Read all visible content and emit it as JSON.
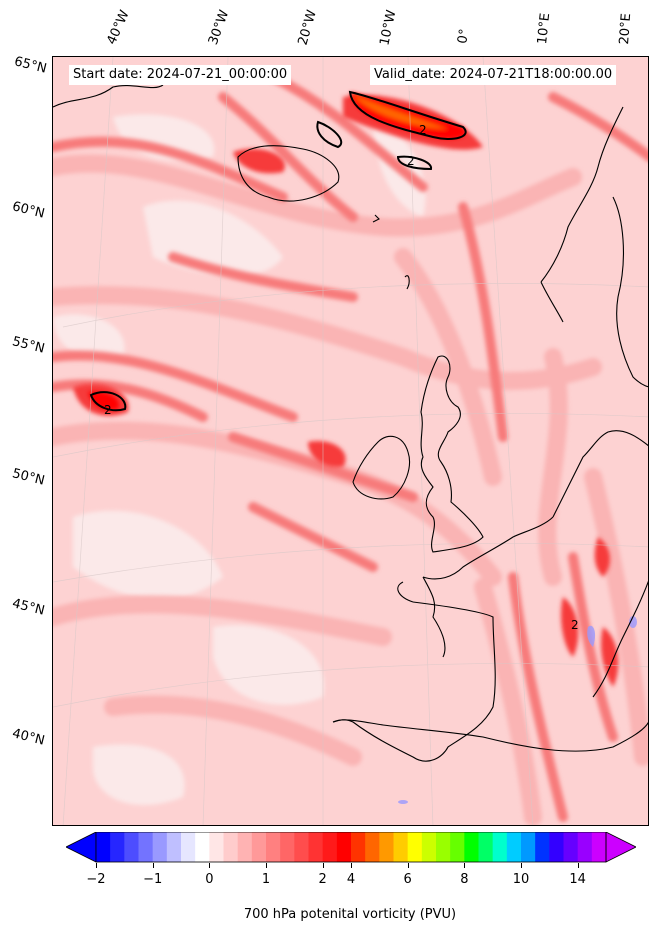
{
  "header": {
    "start_date": "Start date: 2024-07-21_00:00:00",
    "valid_date": "Valid_date: 2024-07-21T18:00:00.00"
  },
  "map": {
    "projection": "conic",
    "longitude_labels": [
      "40°W",
      "30°W",
      "20°W",
      "10°W",
      "0°",
      "10°E",
      "20°E"
    ],
    "latitude_labels": [
      "65°N",
      "60°N",
      "55°N",
      "50°N",
      "45°N",
      "40°N"
    ],
    "contour_label": "2",
    "colors": {
      "background": "#fdd2d2",
      "pale": "#fbe4e4",
      "light": "#fab4b4",
      "medium": "#f77a7a",
      "strong": "#f63a3a",
      "max": "#ff0000",
      "orange": "#ff6600",
      "blue": "#9999ff",
      "coastline": "#000000"
    }
  },
  "colorbar": {
    "tick_labels": [
      "−2",
      "−1",
      "0",
      "1",
      "2",
      "4",
      "6",
      "8",
      "10",
      "14"
    ],
    "label": "700 hPa potenital vorticity (PVU)",
    "colors": [
      "#0000ff",
      "#2626ff",
      "#4d4dff",
      "#7373ff",
      "#9999ff",
      "#bfbfff",
      "#e6e6ff",
      "#ffffff",
      "#ffe6e6",
      "#ffcccc",
      "#ffb3b3",
      "#ff9999",
      "#ff8080",
      "#ff6666",
      "#ff4d4d",
      "#ff3333",
      "#ff1a1a",
      "#ff0000",
      "#ff3300",
      "#ff6600",
      "#ff9900",
      "#ffcc00",
      "#ffff00",
      "#ccff00",
      "#99ff00",
      "#66ff00",
      "#00ff00",
      "#00ff66",
      "#00ffcc",
      "#00ccff",
      "#0099ff",
      "#0033ff",
      "#3300ff",
      "#6600ff",
      "#9900ff",
      "#cc00ff"
    ]
  }
}
